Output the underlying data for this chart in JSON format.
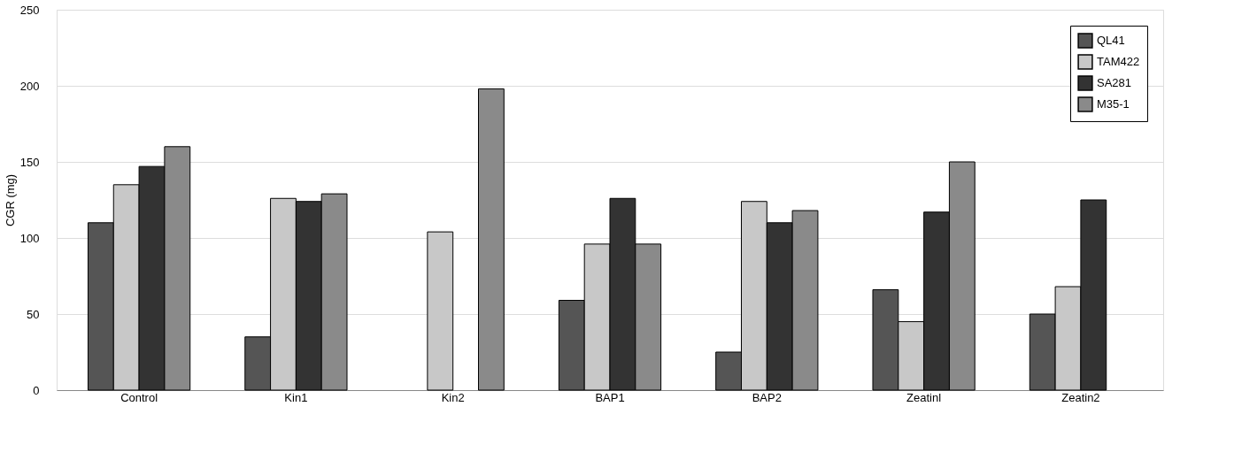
{
  "chart_data": {
    "type": "bar",
    "ylabel": "CGR (mg)",
    "categories": [
      "Control",
      "Kin1",
      "Kin2",
      "BAP1",
      "BAP2",
      "Zeatinl",
      "Zeatin2"
    ],
    "series": [
      {
        "name": "QL41",
        "color": "#555555",
        "values": [
          110,
          35,
          null,
          59,
          25,
          66,
          50
        ]
      },
      {
        "name": "TAM422",
        "color": "#c8c8c8",
        "values": [
          135,
          126,
          104,
          96,
          124,
          45,
          68
        ]
      },
      {
        "name": "SA281",
        "color": "#333333",
        "values": [
          147,
          124,
          null,
          126,
          110,
          117,
          125
        ]
      },
      {
        "name": "M35-1",
        "color": "#8a8a8a",
        "values": [
          160,
          129,
          198,
          96,
          118,
          150,
          null
        ]
      }
    ],
    "ylim": [
      0,
      250
    ],
    "yticks": [
      0,
      50,
      100,
      150,
      200,
      250
    ],
    "grid": "y",
    "legend": "top right"
  }
}
